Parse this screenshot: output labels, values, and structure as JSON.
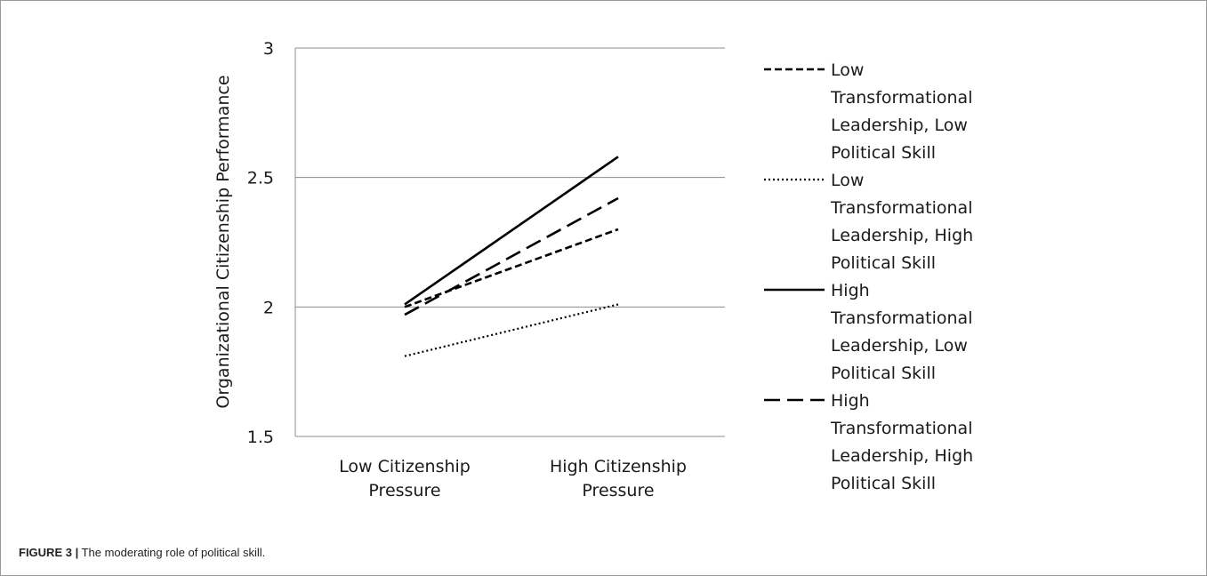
{
  "figure": {
    "caption_label": "FIGURE 3 |",
    "caption_text": " The moderating role of political skill."
  },
  "chart_data": {
    "type": "line",
    "title": "",
    "xlabel": "",
    "ylabel": "Organizational Citizenship Performance",
    "categories": [
      [
        "Low Citizenship",
        "Pressure"
      ],
      [
        "High Citizenship",
        "Pressure"
      ]
    ],
    "ylim": [
      1.5,
      3
    ],
    "yticks": [
      "1.5",
      "2",
      "2.5",
      "3"
    ],
    "grid": true,
    "legend_position": "right",
    "series": [
      {
        "name": [
          "Low",
          "Transformational",
          "Leadership, Low",
          "Political Skill"
        ],
        "style": "short-dash",
        "values": [
          2.0,
          2.3
        ]
      },
      {
        "name": [
          "Low",
          "Transformational",
          "Leadership, High",
          "Political Skill"
        ],
        "style": "dotted",
        "values": [
          1.81,
          2.01
        ]
      },
      {
        "name": [
          "High",
          "Transformational",
          "Leadership, Low",
          "Political Skill"
        ],
        "style": "solid",
        "values": [
          2.01,
          2.58
        ]
      },
      {
        "name": [
          "High",
          "Transformational",
          "Leadership, High",
          "Political Skill"
        ],
        "style": "long-dash",
        "values": [
          1.97,
          2.42
        ]
      }
    ]
  }
}
